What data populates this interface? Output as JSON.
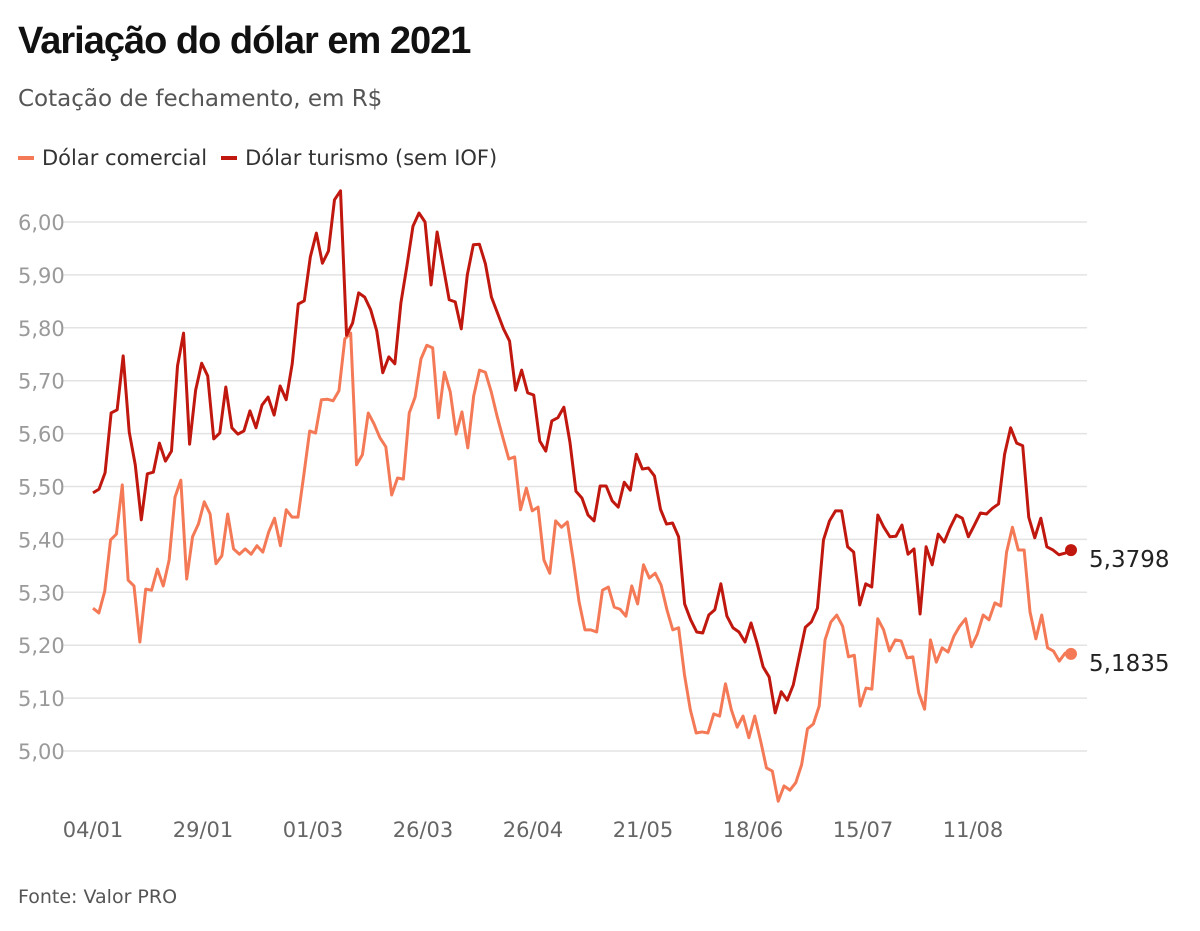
{
  "chart_data": {
    "type": "line",
    "title": "Variação do dólar em 2021",
    "subtitle": "Cotação de fechamento, em R$",
    "source": "Fonte: Valor PRO",
    "x_ticks": [
      "04/01",
      "29/01",
      "01/03",
      "26/03",
      "26/04",
      "21/05",
      "18/06",
      "15/07",
      "11/08"
    ],
    "y_ticks": [
      "5,00",
      "5,10",
      "5,20",
      "5,30",
      "5,40",
      "5,50",
      "5,60",
      "5,70",
      "5,80",
      "5,90",
      "6,00"
    ],
    "y_tick_values": [
      5.0,
      5.1,
      5.2,
      5.3,
      5.4,
      5.5,
      5.6,
      5.7,
      5.8,
      5.9,
      6.0
    ],
    "ylim": [
      4.9,
      6.07
    ],
    "grid": true,
    "legend_position": "top-left",
    "series": [
      {
        "name": "Dólar comercial",
        "color": "#f47a57",
        "end_label": "5,1835",
        "values": [
          5.27,
          5.261,
          5.302,
          5.399,
          5.41,
          5.503,
          5.323,
          5.312,
          5.206,
          5.306,
          5.304,
          5.344,
          5.312,
          5.361,
          5.48,
          5.512,
          5.325,
          5.405,
          5.429,
          5.471,
          5.448,
          5.354,
          5.369,
          5.448,
          5.382,
          5.372,
          5.382,
          5.372,
          5.388,
          5.376,
          5.414,
          5.44,
          5.388,
          5.456,
          5.442,
          5.442,
          5.522,
          5.605,
          5.601,
          5.664,
          5.665,
          5.662,
          5.681,
          5.779,
          5.79,
          5.541,
          5.56,
          5.639,
          5.618,
          5.592,
          5.575,
          5.484,
          5.516,
          5.514,
          5.639,
          5.669,
          5.741,
          5.767,
          5.762,
          5.63,
          5.716,
          5.679,
          5.599,
          5.641,
          5.573,
          5.671,
          5.72,
          5.716,
          5.679,
          5.633,
          5.592,
          5.552,
          5.556,
          5.456,
          5.497,
          5.454,
          5.461,
          5.361,
          5.336,
          5.435,
          5.423,
          5.433,
          5.361,
          5.282,
          5.229,
          5.229,
          5.225,
          5.304,
          5.31,
          5.272,
          5.268,
          5.255,
          5.312,
          5.278,
          5.352,
          5.327,
          5.336,
          5.314,
          5.267,
          5.229,
          5.233,
          5.144,
          5.078,
          5.034,
          5.036,
          5.034,
          5.07,
          5.066,
          5.127,
          5.078,
          5.045,
          5.066,
          5.025,
          5.066,
          5.019,
          4.968,
          4.962,
          4.905,
          4.934,
          4.926,
          4.94,
          4.974,
          5.042,
          5.051,
          5.085,
          5.21,
          5.244,
          5.257,
          5.236,
          5.178,
          5.181,
          5.085,
          5.119,
          5.117,
          5.25,
          5.229,
          5.189,
          5.21,
          5.208,
          5.176,
          5.178,
          5.11,
          5.079,
          5.21,
          5.168,
          5.195,
          5.187,
          5.217,
          5.236,
          5.25,
          5.197,
          5.221,
          5.257,
          5.248,
          5.28,
          5.274,
          5.376,
          5.423,
          5.38,
          5.38,
          5.263,
          5.212,
          5.257,
          5.195,
          5.189,
          5.17,
          5.185,
          5.1835
        ]
      },
      {
        "name": "Dólar turismo (sem IOF)",
        "color": "#c0180f",
        "end_label": "5,3798",
        "values": [
          5.488,
          5.495,
          5.526,
          5.639,
          5.645,
          5.747,
          5.603,
          5.541,
          5.437,
          5.524,
          5.527,
          5.582,
          5.548,
          5.567,
          5.728,
          5.79,
          5.58,
          5.682,
          5.733,
          5.709,
          5.59,
          5.601,
          5.688,
          5.611,
          5.599,
          5.605,
          5.643,
          5.611,
          5.654,
          5.669,
          5.635,
          5.69,
          5.664,
          5.732,
          5.845,
          5.851,
          5.934,
          5.979,
          5.922,
          5.945,
          6.042,
          6.059,
          5.786,
          5.809,
          5.866,
          5.858,
          5.834,
          5.794,
          5.715,
          5.745,
          5.732,
          5.847,
          5.917,
          5.992,
          6.017,
          6.0,
          5.881,
          5.981,
          5.917,
          5.853,
          5.849,
          5.798,
          5.9,
          5.957,
          5.958,
          5.921,
          5.858,
          5.828,
          5.798,
          5.775,
          5.682,
          5.72,
          5.677,
          5.673,
          5.586,
          5.567,
          5.624,
          5.63,
          5.65,
          5.584,
          5.491,
          5.478,
          5.446,
          5.435,
          5.501,
          5.501,
          5.473,
          5.461,
          5.508,
          5.493,
          5.561,
          5.533,
          5.535,
          5.52,
          5.457,
          5.429,
          5.431,
          5.405,
          5.278,
          5.248,
          5.225,
          5.223,
          5.257,
          5.267,
          5.316,
          5.255,
          5.233,
          5.225,
          5.206,
          5.242,
          5.204,
          5.159,
          5.14,
          5.072,
          5.112,
          5.096,
          5.125,
          5.18,
          5.234,
          5.244,
          5.27,
          5.399,
          5.435,
          5.454,
          5.454,
          5.386,
          5.376,
          5.276,
          5.316,
          5.31,
          5.446,
          5.423,
          5.405,
          5.406,
          5.427,
          5.372,
          5.382,
          5.259,
          5.386,
          5.352,
          5.41,
          5.395,
          5.423,
          5.446,
          5.44,
          5.405,
          5.427,
          5.45,
          5.448,
          5.459,
          5.467,
          5.561,
          5.611,
          5.582,
          5.577,
          5.442,
          5.403,
          5.44,
          5.386,
          5.38,
          5.371,
          5.374,
          5.3798
        ]
      }
    ]
  }
}
